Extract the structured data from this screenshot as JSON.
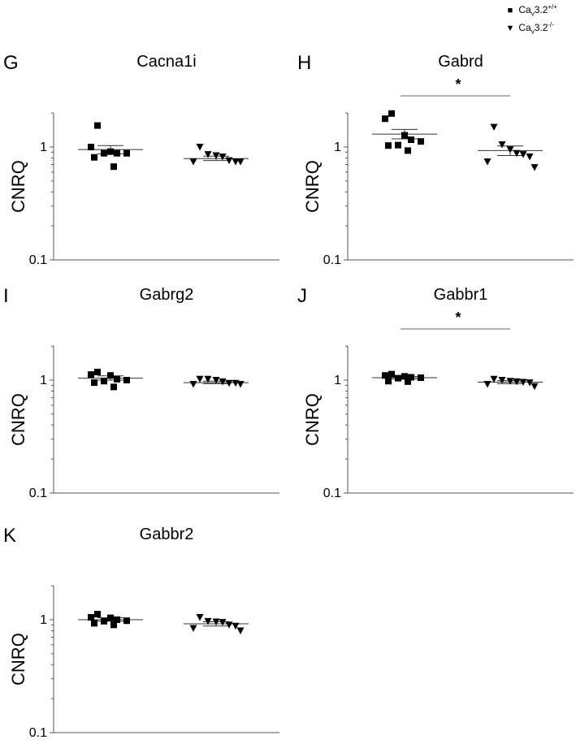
{
  "legend": [
    {
      "marker": "square",
      "name_main": "Ca",
      "name_sub": "v",
      "name_rest": "3.2",
      "name_sup": "+/+"
    },
    {
      "marker": "triangle",
      "name_main": "Ca",
      "name_sub": "v",
      "name_rest": "3.2",
      "name_sup": "-/-"
    }
  ],
  "chart_data": [
    {
      "type": "scatter",
      "panel_letter": "G",
      "title": "Cacna1i",
      "ylabel": "CNRQ",
      "yscale": "log",
      "ylim": [
        0.1,
        2.0
      ],
      "yticks": [
        "1",
        "0.1"
      ],
      "significance": "",
      "groups": [
        {
          "series": "Cav3.2+/+",
          "marker": "square",
          "values": [
            1.55,
            1.0,
            0.91,
            0.88,
            0.88,
            0.88,
            0.81,
            0.67
          ],
          "mean": 0.95,
          "sem_low": 0.87,
          "sem_high": 1.03
        },
        {
          "series": "Cav3.2-/-",
          "marker": "triangle",
          "values": [
            1.0,
            0.86,
            0.84,
            0.82,
            0.76,
            0.74,
            0.74,
            0.74
          ],
          "mean": 0.79,
          "sem_low": 0.76,
          "sem_high": 0.83
        }
      ]
    },
    {
      "type": "scatter",
      "panel_letter": "H",
      "title": "Gabrd",
      "ylabel": "CNRQ",
      "yscale": "log",
      "ylim": [
        0.1,
        2.0
      ],
      "yticks": [
        "1",
        "0.1"
      ],
      "significance": "*",
      "groups": [
        {
          "series": "Cav3.2+/+",
          "marker": "square",
          "values": [
            1.98,
            1.78,
            1.27,
            1.16,
            1.12,
            1.04,
            1.03,
            0.93
          ],
          "mean": 1.3,
          "sem_low": 1.18,
          "sem_high": 1.43
        },
        {
          "series": "Cav3.2-/-",
          "marker": "triangle",
          "values": [
            1.5,
            1.05,
            0.95,
            0.88,
            0.86,
            0.82,
            0.74,
            0.66
          ],
          "mean": 0.93,
          "sem_low": 0.84,
          "sem_high": 1.02
        }
      ]
    },
    {
      "type": "scatter",
      "panel_letter": "I",
      "title": "Gabrg2",
      "ylabel": "CNRQ",
      "yscale": "log",
      "ylim": [
        0.1,
        2.0
      ],
      "yticks": [
        "1",
        "0.1"
      ],
      "significance": "",
      "groups": [
        {
          "series": "Cav3.2+/+",
          "marker": "square",
          "values": [
            1.18,
            1.12,
            1.1,
            1.02,
            1.0,
            0.98,
            0.95,
            0.87
          ],
          "mean": 1.04,
          "sem_low": 1.0,
          "sem_high": 1.09
        },
        {
          "series": "Cav3.2-/-",
          "marker": "triangle",
          "values": [
            1.02,
            1.02,
            1.0,
            0.97,
            0.94,
            0.94,
            0.92,
            0.92
          ],
          "mean": 0.95,
          "sem_low": 0.93,
          "sem_high": 0.98
        }
      ]
    },
    {
      "type": "scatter",
      "panel_letter": "J",
      "title": "Gabbr1",
      "ylabel": "CNRQ",
      "yscale": "log",
      "ylim": [
        0.1,
        2.0
      ],
      "yticks": [
        "1",
        "0.1"
      ],
      "significance": "*",
      "groups": [
        {
          "series": "Cav3.2+/+",
          "marker": "square",
          "values": [
            1.13,
            1.1,
            1.08,
            1.06,
            1.05,
            1.04,
            0.98,
            0.97
          ],
          "mean": 1.05,
          "sem_low": 1.02,
          "sem_high": 1.08
        },
        {
          "series": "Cav3.2-/-",
          "marker": "triangle",
          "values": [
            1.02,
            1.0,
            0.98,
            0.97,
            0.96,
            0.95,
            0.92,
            0.88
          ],
          "mean": 0.96,
          "sem_low": 0.93,
          "sem_high": 0.99
        }
      ]
    },
    {
      "type": "scatter",
      "panel_letter": "K",
      "title": "Gabbr2",
      "ylabel": "CNRQ",
      "yscale": "log",
      "ylim": [
        0.1,
        2.0
      ],
      "yticks": [
        "1",
        "0.1"
      ],
      "significance": "",
      "groups": [
        {
          "series": "Cav3.2+/+",
          "marker": "square",
          "values": [
            1.12,
            1.05,
            1.04,
            1.0,
            0.98,
            0.97,
            0.93,
            0.9
          ],
          "mean": 1.0,
          "sem_low": 0.97,
          "sem_high": 1.04
        },
        {
          "series": "Cav3.2-/-",
          "marker": "triangle",
          "values": [
            1.05,
            0.97,
            0.96,
            0.95,
            0.9,
            0.88,
            0.84,
            0.8
          ],
          "mean": 0.92,
          "sem_low": 0.88,
          "sem_high": 0.96
        }
      ]
    }
  ]
}
